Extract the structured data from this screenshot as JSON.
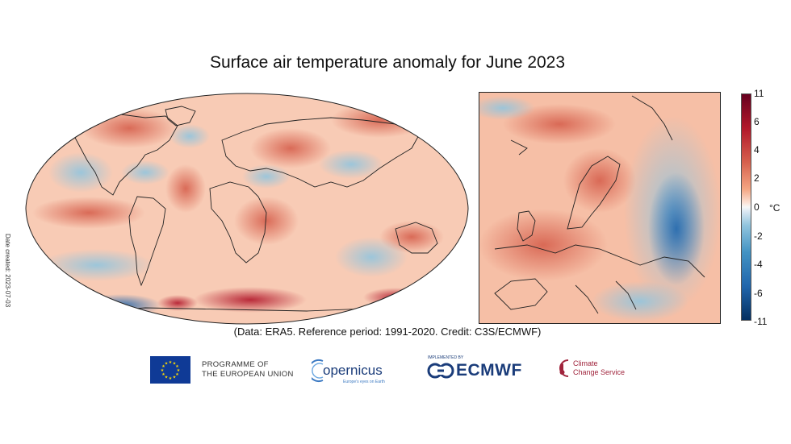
{
  "title": "Surface air temperature anomaly for June 2023",
  "date_note": "Date created: 2023-07-03",
  "caption": "(Data: ERA5.  Reference period: 1991-2020.  Credit: C3S/ECMWF)",
  "colorbar": {
    "ticks": [
      "11",
      "6",
      "4",
      "2",
      "0",
      "-2",
      "-4",
      "-6",
      "-11"
    ],
    "unit": "°C",
    "colors": [
      "#67001f",
      "#b2182b",
      "#d6604d",
      "#f4a582",
      "#f7f7f7",
      "#92c5de",
      "#4393c3",
      "#2166ac",
      "#053061"
    ]
  },
  "logos": {
    "eu_text_line1": "PROGRAMME OF",
    "eu_text_line2": "THE EUROPEAN UNION",
    "copernicus": "opernicus",
    "copernicus_sub": "Europe's eyes on Earth",
    "implemented_by": "IMPLEMENTED BY",
    "ecmwf": "ECMWF",
    "c3s_line1": "Climate",
    "c3s_line2": "Change Service"
  }
}
